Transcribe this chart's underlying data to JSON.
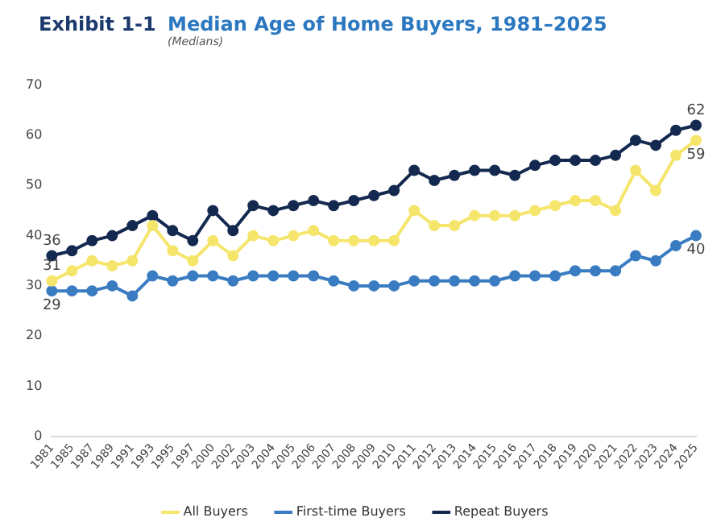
{
  "chart_data": {
    "type": "line",
    "title": "Median Age of Home Buyers, 1981–2025",
    "subtitle": "(Medians)",
    "annotations": [
      "Exhibit 1-1"
    ],
    "categories": [
      "1981",
      "1985",
      "1987",
      "1989",
      "1991",
      "1993",
      "1995",
      "1997",
      "2000",
      "2002",
      "2003",
      "2004",
      "2005",
      "2006",
      "2007",
      "2008",
      "2009",
      "2010",
      "2011",
      "2012",
      "2013",
      "2014",
      "2015",
      "2016",
      "2017",
      "2018",
      "2019",
      "2020",
      "2021",
      "2022",
      "2023",
      "2024",
      "2025"
    ],
    "series": [
      {
        "name": "All Buyers",
        "color": "#f5e56b",
        "values": [
          31,
          33,
          35,
          34,
          35,
          42,
          37,
          35,
          39,
          36,
          40,
          39,
          40,
          41,
          39,
          39,
          39,
          39,
          45,
          42,
          42,
          44,
          44,
          44,
          45,
          46,
          47,
          47,
          45,
          53,
          49,
          56,
          59
        ],
        "value_labels": [
          "31",
          null,
          null,
          null,
          null,
          null,
          null,
          null,
          null,
          null,
          null,
          null,
          null,
          null,
          null,
          null,
          null,
          null,
          null,
          null,
          null,
          null,
          null,
          null,
          null,
          null,
          null,
          null,
          null,
          null,
          null,
          null,
          "59"
        ]
      },
      {
        "name": "First-time Buyers",
        "color": "#3a7cc2",
        "values": [
          29,
          29,
          29,
          30,
          28,
          32,
          31,
          32,
          32,
          31,
          32,
          32,
          32,
          32,
          31,
          30,
          30,
          30,
          31,
          31,
          31,
          31,
          31,
          32,
          32,
          32,
          33,
          33,
          33,
          36,
          35,
          38,
          40
        ],
        "value_labels": [
          "29",
          null,
          null,
          null,
          null,
          null,
          null,
          null,
          null,
          null,
          null,
          null,
          null,
          null,
          null,
          null,
          null,
          null,
          null,
          null,
          null,
          null,
          null,
          null,
          null,
          null,
          null,
          null,
          null,
          null,
          null,
          null,
          "40"
        ]
      },
      {
        "name": "Repeat Buyers",
        "color": "#14294f",
        "values": [
          36,
          37,
          39,
          40,
          42,
          44,
          41,
          39,
          45,
          41,
          46,
          45,
          46,
          47,
          46,
          47,
          48,
          49,
          53,
          51,
          52,
          53,
          53,
          52,
          54,
          55,
          55,
          55,
          56,
          59,
          58,
          61,
          62
        ],
        "value_labels": [
          "36",
          null,
          null,
          null,
          null,
          null,
          null,
          null,
          null,
          null,
          null,
          null,
          null,
          null,
          null,
          null,
          null,
          null,
          null,
          null,
          null,
          null,
          null,
          null,
          null,
          null,
          null,
          null,
          null,
          null,
          null,
          null,
          "62"
        ]
      }
    ],
    "ylim": [
      0,
      70
    ],
    "yticks": [
      0,
      10,
      20,
      30,
      40,
      50,
      60,
      70
    ],
    "grid": false,
    "legend": "bottom",
    "marker": "circle",
    "line_style": "solid"
  }
}
